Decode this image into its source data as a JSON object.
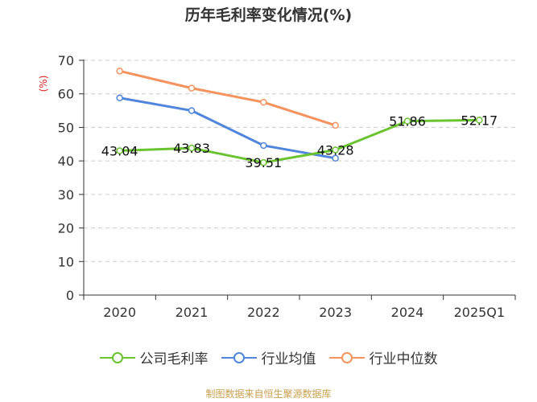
{
  "chart_data": {
    "type": "line",
    "title": "历年毛利率变化情况(%)",
    "ylabel": "(%)",
    "xlabel": "",
    "categories": [
      "2020",
      "2021",
      "2022",
      "2023",
      "2024",
      "2025Q1"
    ],
    "yticks": [
      "0",
      "10",
      "20",
      "30",
      "40",
      "50",
      "60",
      "70"
    ],
    "ylim": [
      0,
      70
    ],
    "grid": true,
    "legend_position": "bottom",
    "series": [
      {
        "name": "公司毛利率",
        "color": "#6ac430",
        "values": [
          43.04,
          43.83,
          39.51,
          43.28,
          51.86,
          52.17
        ],
        "labels": [
          "43.04",
          "43.83",
          "39.51",
          "43.28",
          "51.86",
          "52.17"
        ]
      },
      {
        "name": "行业均值",
        "color": "#4f86dc",
        "values": [
          58.8,
          55.0,
          44.6,
          40.8,
          null,
          null
        ]
      },
      {
        "name": "行业中位数",
        "color": "#f4935d",
        "values": [
          66.8,
          61.7,
          57.5,
          50.6,
          null,
          null
        ]
      }
    ]
  },
  "source_note": "制图数据来自恒生聚源数据库",
  "colors": {
    "source_note": "#c8a050",
    "ylabel": "#e02020",
    "axis": "#333333",
    "grid": "#cccccc"
  }
}
